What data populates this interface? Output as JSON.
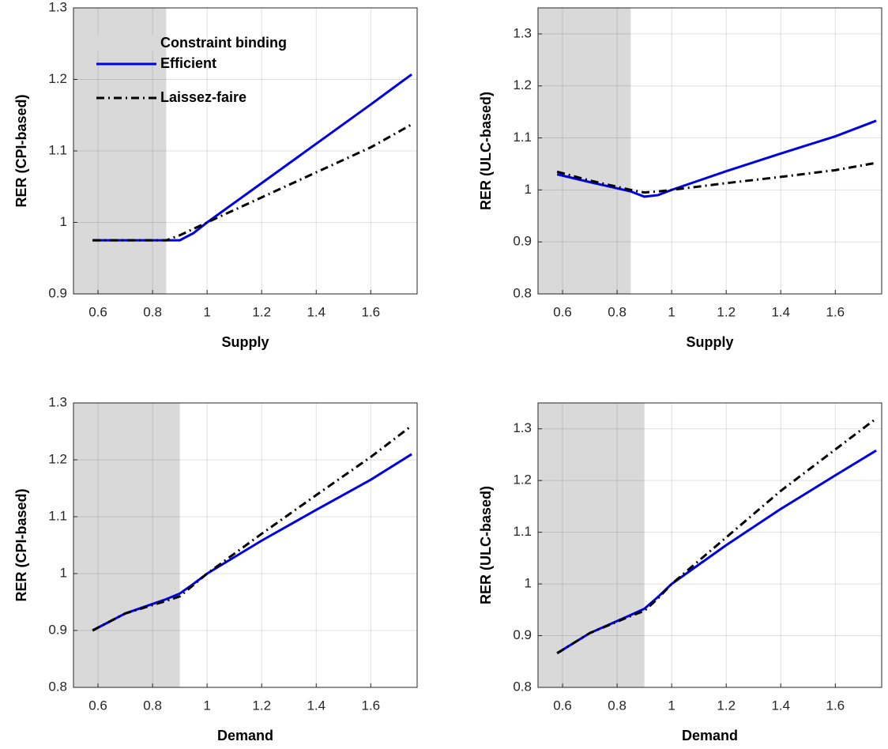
{
  "chart_data": [
    {
      "type": "line",
      "xlabel": "Supply",
      "ylabel": "RER (CPI-based)",
      "xlim": [
        0.51,
        1.77
      ],
      "ylim": [
        0.9,
        1.3
      ],
      "xticks": [
        0.6,
        0.8,
        1,
        1.2,
        1.4,
        1.6
      ],
      "yticks": [
        0.9,
        1,
        1.1,
        1.2,
        1.3
      ],
      "grid": true,
      "legend": "upper left",
      "shade": [
        0.51,
        0.85
      ],
      "shade_label": "Constraint binding",
      "shade_color": "#d9d9d9",
      "x": [
        0.58,
        0.7,
        0.85,
        0.9,
        0.95,
        1.0,
        1.2,
        1.4,
        1.6,
        1.75
      ],
      "series": [
        {
          "name": "Efficient",
          "color": "#0000e6",
          "dash": "solid",
          "values": [
            0.975,
            0.975,
            0.975,
            0.975,
            0.985,
            1.0,
            1.055,
            1.11,
            1.165,
            1.207
          ]
        },
        {
          "name": "Laissez-faire",
          "color": "#000000",
          "dash": "dashdot",
          "values": [
            0.975,
            0.975,
            0.975,
            0.982,
            0.991,
            1.0,
            1.035,
            1.07,
            1.105,
            1.137
          ]
        }
      ]
    },
    {
      "type": "line",
      "xlabel": "Supply",
      "ylabel": "RER (ULC-based)",
      "xlim": [
        0.51,
        1.77
      ],
      "ylim": [
        0.8,
        1.35
      ],
      "xticks": [
        0.6,
        0.8,
        1,
        1.2,
        1.4,
        1.6
      ],
      "yticks": [
        0.8,
        0.9,
        1,
        1.1,
        1.2,
        1.3
      ],
      "grid": true,
      "shade": [
        0.51,
        0.85
      ],
      "shade_color": "#d9d9d9",
      "x": [
        0.58,
        0.7,
        0.85,
        0.9,
        0.95,
        1.0,
        1.2,
        1.4,
        1.6,
        1.75
      ],
      "series": [
        {
          "color": "#0000e6",
          "dash": "solid",
          "values": [
            1.03,
            1.015,
            0.997,
            0.987,
            0.99,
            1.0,
            1.036,
            1.07,
            1.103,
            1.133
          ]
        },
        {
          "color": "#000000",
          "dash": "dashdot",
          "values": [
            1.035,
            1.018,
            1.0,
            0.995,
            0.997,
            1.0,
            1.013,
            1.025,
            1.038,
            1.052
          ]
        }
      ]
    },
    {
      "type": "line",
      "xlabel": "Demand",
      "ylabel": "RER (CPI-based)",
      "xlim": [
        0.51,
        1.77
      ],
      "ylim": [
        0.8,
        1.3
      ],
      "xticks": [
        0.6,
        0.8,
        1,
        1.2,
        1.4,
        1.6
      ],
      "yticks": [
        0.8,
        0.9,
        1,
        1.1,
        1.2,
        1.3
      ],
      "grid": true,
      "shade": [
        0.51,
        0.9
      ],
      "shade_color": "#d9d9d9",
      "x": [
        0.58,
        0.7,
        0.85,
        0.9,
        0.95,
        1.0,
        1.2,
        1.4,
        1.6,
        1.75
      ],
      "series": [
        {
          "color": "#0000e6",
          "dash": "solid",
          "values": [
            0.9,
            0.93,
            0.955,
            0.965,
            0.982,
            1.0,
            1.058,
            1.112,
            1.165,
            1.21
          ]
        },
        {
          "color": "#000000",
          "dash": "dashdot",
          "values": [
            0.9,
            0.93,
            0.952,
            0.96,
            0.98,
            1.0,
            1.07,
            1.138,
            1.205,
            1.26
          ]
        }
      ]
    },
    {
      "type": "line",
      "xlabel": "Demand",
      "ylabel": "RER (ULC-based)",
      "xlim": [
        0.51,
        1.77
      ],
      "ylim": [
        0.8,
        1.35
      ],
      "xticks": [
        0.6,
        0.8,
        1,
        1.2,
        1.4,
        1.6
      ],
      "yticks": [
        0.8,
        0.9,
        1,
        1.1,
        1.2,
        1.3
      ],
      "grid": true,
      "shade": [
        0.51,
        0.9
      ],
      "shade_color": "#d9d9d9",
      "x": [
        0.58,
        0.7,
        0.85,
        0.9,
        0.95,
        1.0,
        1.2,
        1.4,
        1.6,
        1.75
      ],
      "series": [
        {
          "color": "#0000e6",
          "dash": "solid",
          "values": [
            0.866,
            0.905,
            0.94,
            0.952,
            0.975,
            1.0,
            1.075,
            1.145,
            1.21,
            1.258
          ]
        },
        {
          "color": "#000000",
          "dash": "dashdot",
          "values": [
            0.866,
            0.905,
            0.938,
            0.948,
            0.972,
            1.0,
            1.09,
            1.18,
            1.26,
            1.32
          ]
        }
      ]
    }
  ]
}
